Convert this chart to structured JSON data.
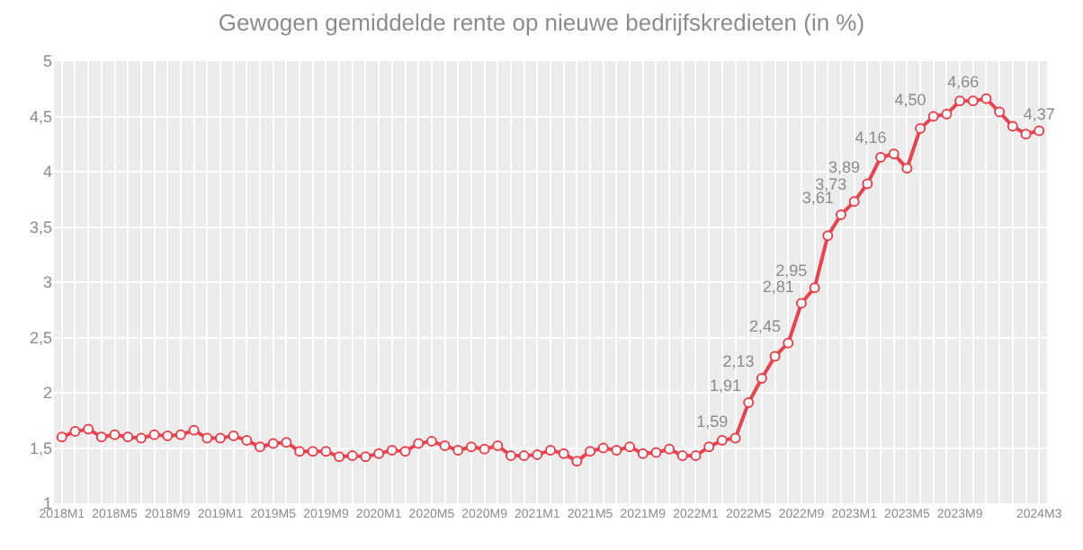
{
  "chart_data": {
    "type": "line",
    "title": "Gewogen gemiddelde rente op nieuwe bedrijfskredieten (in %)",
    "categories": [
      "2018M1",
      null,
      null,
      null,
      "2018M5",
      null,
      null,
      null,
      "2018M9",
      null,
      null,
      null,
      "2019M1",
      null,
      null,
      null,
      "2019M5",
      null,
      null,
      null,
      "2019M9",
      null,
      null,
      null,
      "2020M1",
      null,
      null,
      null,
      "2020M5",
      null,
      null,
      null,
      "2020M9",
      null,
      null,
      null,
      "2021M1",
      null,
      null,
      null,
      "2021M5",
      null,
      null,
      null,
      "2021M9",
      null,
      null,
      null,
      "2022M1",
      null,
      null,
      null,
      "2022M5",
      null,
      null,
      null,
      "2022M9",
      null,
      null,
      null,
      "2023M1",
      null,
      null,
      null,
      "2023M5",
      null,
      null,
      null,
      "2023M9",
      null,
      null,
      null,
      null,
      null,
      "2024M3"
    ],
    "series": [
      {
        "color": "#e8434f",
        "values": [
          1.6,
          1.65,
          1.67,
          1.6,
          1.62,
          1.6,
          1.59,
          1.62,
          1.61,
          1.62,
          1.66,
          1.59,
          1.59,
          1.61,
          1.57,
          1.51,
          1.54,
          1.55,
          1.47,
          1.47,
          1.47,
          1.42,
          1.43,
          1.42,
          1.45,
          1.48,
          1.47,
          1.54,
          1.56,
          1.52,
          1.48,
          1.51,
          1.49,
          1.52,
          1.43,
          1.43,
          1.44,
          1.48,
          1.45,
          1.38,
          1.47,
          1.5,
          1.48,
          1.51,
          1.45,
          1.46,
          1.49,
          1.43,
          1.43,
          1.51,
          1.57,
          1.59,
          1.91,
          2.13,
          2.33,
          2.45,
          2.81,
          2.95,
          3.42,
          3.61,
          3.73,
          3.89,
          4.13,
          4.16,
          4.03,
          4.39,
          4.5,
          4.52,
          4.64,
          4.64,
          4.66,
          4.54,
          4.41,
          4.34,
          4.37
        ],
        "value_labels": [
          null,
          null,
          null,
          null,
          null,
          null,
          null,
          null,
          null,
          null,
          null,
          null,
          null,
          null,
          null,
          null,
          null,
          null,
          null,
          null,
          null,
          null,
          null,
          null,
          null,
          null,
          null,
          null,
          null,
          null,
          null,
          null,
          null,
          null,
          null,
          null,
          null,
          null,
          null,
          null,
          null,
          null,
          null,
          null,
          null,
          null,
          null,
          null,
          null,
          null,
          null,
          "1,59",
          "1,91",
          "2,13",
          null,
          "2,45",
          "2,81",
          "2,95",
          null,
          "3,61",
          "3,73",
          "3,89",
          null,
          "4,16",
          null,
          null,
          "4,50",
          null,
          null,
          null,
          "4,66",
          null,
          null,
          null,
          "4,37"
        ]
      }
    ],
    "ylim": [
      1,
      5
    ],
    "yticks": [
      1,
      {
        "value": 1.5,
        "label": "1,5"
      },
      2,
      {
        "value": 2.5,
        "label": "2,5"
      },
      3,
      {
        "value": 3.5,
        "label": "3,5"
      },
      4,
      {
        "value": 4.5,
        "label": "4,5"
      },
      5
    ],
    "grid": true,
    "marker": "circle",
    "line_style": "solid",
    "legend": false
  }
}
